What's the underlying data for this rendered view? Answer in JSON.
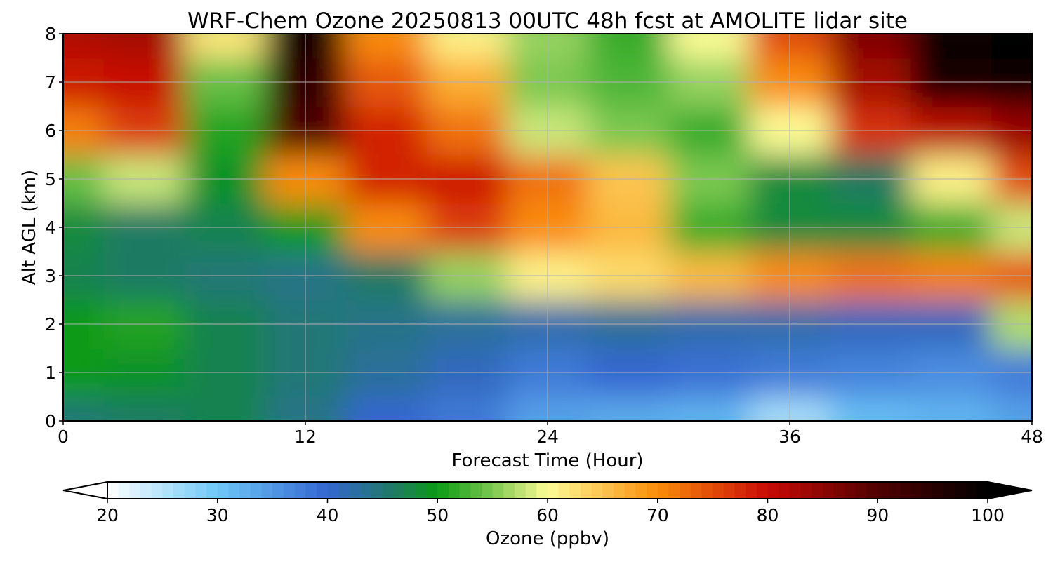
{
  "chart_data": {
    "type": "heatmap",
    "title": "WRF-Chem Ozone  20250813 00UTC 48h fcst at AMOLITE lidar site",
    "xlabel": "Forecast Time (Hour)",
    "ylabel": "Alt AGL (km)",
    "xlim": [
      0,
      48
    ],
    "ylim": [
      0,
      8
    ],
    "xticks": [
      0,
      12,
      24,
      36,
      48
    ],
    "yticks": [
      0,
      1,
      2,
      3,
      4,
      5,
      6,
      7,
      8
    ],
    "grid": true,
    "x": [
      0,
      4,
      8,
      12,
      16,
      20,
      24,
      28,
      32,
      36,
      40,
      44,
      48
    ],
    "y": [
      0,
      1,
      2,
      3,
      4,
      5,
      6,
      7,
      8
    ],
    "z": [
      [
        45,
        46,
        47,
        44,
        40,
        38,
        34,
        33,
        32,
        26,
        31,
        32,
        34
      ],
      [
        50,
        49,
        47,
        45,
        43,
        41,
        38,
        40,
        39,
        38,
        37,
        36,
        38
      ],
      [
        50,
        51,
        47,
        45,
        44,
        43,
        42,
        43,
        42,
        42,
        41,
        41,
        57
      ],
      [
        47,
        46,
        45,
        44,
        46,
        56,
        61,
        63,
        66,
        70,
        72,
        71,
        74
      ],
      [
        48,
        46,
        47,
        50,
        70,
        76,
        70,
        66,
        52,
        48,
        48,
        52,
        58
      ],
      [
        54,
        58,
        49,
        70,
        78,
        79,
        72,
        65,
        55,
        48,
        46,
        61,
        75
      ],
      [
        71,
        76,
        51,
        90,
        78,
        72,
        58,
        55,
        52,
        60,
        77,
        81,
        84
      ],
      [
        79,
        80,
        54,
        94,
        74,
        67,
        55,
        53,
        56,
        70,
        83,
        97,
        99
      ],
      [
        82,
        83,
        62,
        97,
        70,
        61,
        56,
        52,
        60,
        75,
        86,
        99,
        100
      ]
    ],
    "colorbar": {
      "label": "Ozone  (ppbv)",
      "min": 20,
      "max": 100,
      "ticks": [
        20,
        30,
        40,
        50,
        60,
        70,
        80,
        90,
        100
      ],
      "extend": "both",
      "colormap": [
        [
          20,
          "#ffffff"
        ],
        [
          30,
          "#6ec8f8"
        ],
        [
          40,
          "#3466d0"
        ],
        [
          46,
          "#1e7a64"
        ],
        [
          50,
          "#0a9a14"
        ],
        [
          55,
          "#7cc850"
        ],
        [
          60,
          "#fdfc96"
        ],
        [
          70,
          "#fa8c08"
        ],
        [
          80,
          "#c80a06"
        ],
        [
          90,
          "#500000"
        ],
        [
          100,
          "#000000"
        ]
      ]
    }
  }
}
